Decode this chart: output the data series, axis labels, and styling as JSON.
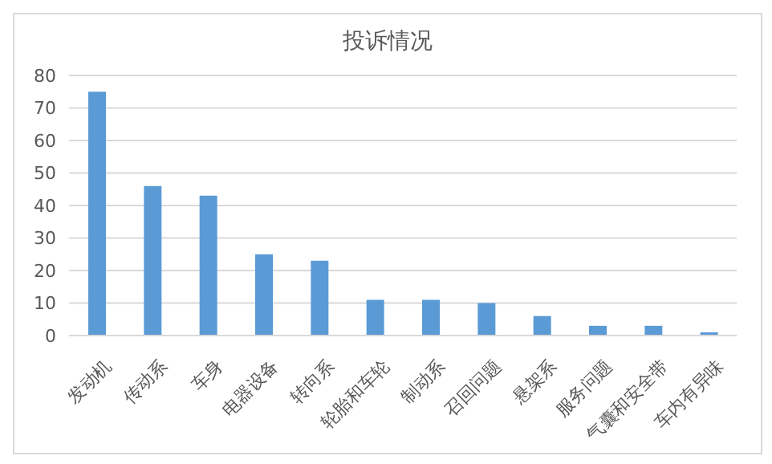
{
  "chart_data": {
    "type": "bar",
    "title": "投诉情况",
    "categories": [
      "发动机",
      "传动系",
      "车身",
      "电器设备",
      "转向系",
      "轮胎和车轮",
      "制动系",
      "召回问题",
      "悬架系",
      "服务问题",
      "气囊和安全带",
      "车内有异味"
    ],
    "values": [
      75,
      46,
      43,
      25,
      23,
      11,
      11,
      10,
      6,
      3,
      3,
      1
    ],
    "color": "#5b9bd5",
    "ylim": [
      0,
      80
    ],
    "yticks": [
      0,
      10,
      20,
      30,
      40,
      50,
      60,
      70,
      80
    ],
    "grid": "y"
  }
}
